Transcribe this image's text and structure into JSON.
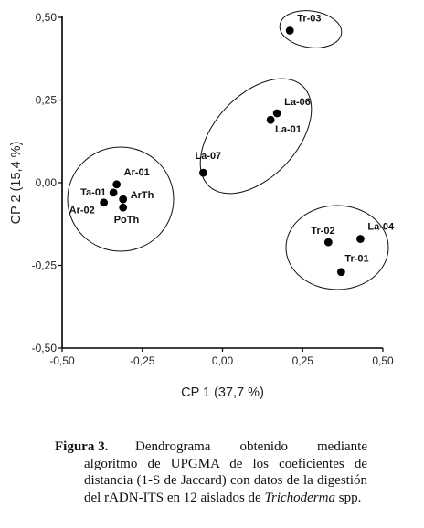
{
  "chart_data": {
    "type": "scatter",
    "xlabel": "CP 1 (37,7 %)",
    "ylabel": "CP 2 (15,4 %)",
    "xlim": [
      -0.5,
      0.5
    ],
    "ylim": [
      -0.5,
      0.5
    ],
    "x_ticks": [
      "-0,50",
      "-0,25",
      "0,00",
      "0,25",
      "0,50"
    ],
    "y_ticks": [
      "0,50",
      "0,25",
      "0,00",
      "-0,25",
      "-0,50"
    ],
    "x_tick_values": [
      -0.5,
      -0.25,
      0,
      0.25,
      0.5
    ],
    "y_tick_values": [
      0.5,
      0.25,
      0,
      -0.25,
      -0.5
    ],
    "grid": false,
    "points": [
      {
        "label": "Tr-03",
        "x": 0.21,
        "y": 0.46
      },
      {
        "label": "La-06",
        "x": 0.17,
        "y": 0.21
      },
      {
        "label": "La-01",
        "x": 0.15,
        "y": 0.19
      },
      {
        "label": "La-07",
        "x": -0.06,
        "y": 0.03
      },
      {
        "label": "Ar-01",
        "x": -0.33,
        "y": -0.005
      },
      {
        "label": "Ta-01",
        "x": -0.34,
        "y": -0.03
      },
      {
        "label": "ArTh",
        "x": -0.31,
        "y": -0.05
      },
      {
        "label": "Ar-02",
        "x": -0.37,
        "y": -0.06
      },
      {
        "label": "PoTh",
        "x": -0.31,
        "y": -0.075
      },
      {
        "label": "Tr-02",
        "x": 0.33,
        "y": -0.18
      },
      {
        "label": "La-04",
        "x": 0.43,
        "y": -0.17
      },
      {
        "label": "Tr-01",
        "x": 0.37,
        "y": -0.27
      }
    ]
  },
  "caption": {
    "lead": "Figura 3.",
    "text": "Dendrograma obtenido mediante algoritmo de UPGMA de los coeficientes de distancia (1-S de Jaccard) con datos de la digestión del rADN-ITS en 12 aislados de",
    "species": "Trichoderma",
    "tail": "spp."
  }
}
